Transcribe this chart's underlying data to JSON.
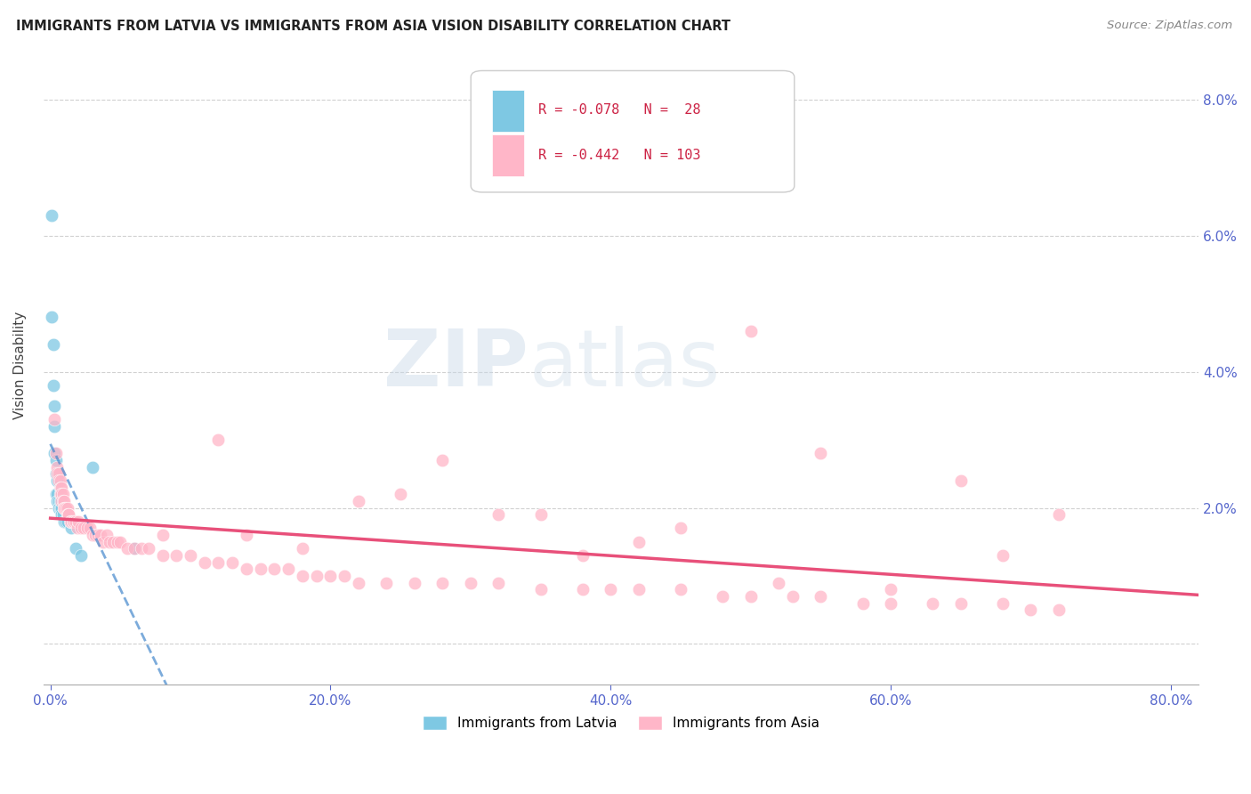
{
  "title": "IMMIGRANTS FROM LATVIA VS IMMIGRANTS FROM ASIA VISION DISABILITY CORRELATION CHART",
  "source": "Source: ZipAtlas.com",
  "ylabel": "Vision Disability",
  "xlim": [
    -0.005,
    0.82
  ],
  "ylim": [
    -0.006,
    0.088
  ],
  "yticks": [
    0.0,
    0.02,
    0.04,
    0.06,
    0.08
  ],
  "xticks": [
    0.0,
    0.2,
    0.4,
    0.6,
    0.8
  ],
  "xtick_labels": [
    "0.0%",
    "20.0%",
    "40.0%",
    "60.0%",
    "80.0%"
  ],
  "right_ytick_labels": [
    "",
    "2.0%",
    "4.0%",
    "6.0%",
    "8.0%"
  ],
  "latvia_R": -0.078,
  "latvia_N": 28,
  "asia_R": -0.442,
  "asia_N": 103,
  "latvia_color": "#7ec8e3",
  "asia_color": "#ffb6c8",
  "latvia_line_color": "#4488cc",
  "asia_line_color": "#e8507a",
  "background_color": "#ffffff",
  "title_color": "#222222",
  "source_color": "#888888",
  "tick_color": "#5566cc",
  "grid_color": "#cccccc",
  "watermark_color": "#dde8f0",
  "latvia_x": [
    0.001,
    0.001,
    0.002,
    0.002,
    0.003,
    0.003,
    0.003,
    0.004,
    0.004,
    0.004,
    0.005,
    0.005,
    0.005,
    0.006,
    0.006,
    0.007,
    0.007,
    0.008,
    0.008,
    0.009,
    0.01,
    0.011,
    0.012,
    0.015,
    0.018,
    0.022,
    0.03,
    0.06
  ],
  "latvia_y": [
    0.063,
    0.048,
    0.044,
    0.038,
    0.035,
    0.032,
    0.028,
    0.027,
    0.025,
    0.022,
    0.024,
    0.022,
    0.021,
    0.021,
    0.02,
    0.021,
    0.02,
    0.02,
    0.019,
    0.019,
    0.018,
    0.018,
    0.018,
    0.017,
    0.014,
    0.013,
    0.026,
    0.014
  ],
  "asia_x": [
    0.003,
    0.004,
    0.005,
    0.005,
    0.006,
    0.006,
    0.007,
    0.007,
    0.007,
    0.008,
    0.008,
    0.008,
    0.009,
    0.009,
    0.01,
    0.01,
    0.01,
    0.011,
    0.011,
    0.012,
    0.012,
    0.013,
    0.013,
    0.014,
    0.015,
    0.016,
    0.017,
    0.018,
    0.019,
    0.02,
    0.022,
    0.024,
    0.026,
    0.028,
    0.03,
    0.032,
    0.034,
    0.036,
    0.038,
    0.04,
    0.042,
    0.045,
    0.048,
    0.05,
    0.055,
    0.06,
    0.065,
    0.07,
    0.08,
    0.09,
    0.1,
    0.11,
    0.12,
    0.13,
    0.14,
    0.15,
    0.16,
    0.17,
    0.18,
    0.19,
    0.2,
    0.21,
    0.22,
    0.24,
    0.26,
    0.28,
    0.3,
    0.32,
    0.35,
    0.38,
    0.4,
    0.42,
    0.45,
    0.48,
    0.5,
    0.53,
    0.55,
    0.58,
    0.6,
    0.63,
    0.65,
    0.68,
    0.7,
    0.72,
    0.5,
    0.55,
    0.28,
    0.35,
    0.12,
    0.25,
    0.08,
    0.65,
    0.72,
    0.18,
    0.32,
    0.45,
    0.6,
    0.14,
    0.22,
    0.38,
    0.52,
    0.68,
    0.42
  ],
  "asia_y": [
    0.033,
    0.028,
    0.026,
    0.025,
    0.025,
    0.024,
    0.024,
    0.023,
    0.022,
    0.023,
    0.022,
    0.021,
    0.022,
    0.021,
    0.021,
    0.02,
    0.02,
    0.02,
    0.02,
    0.02,
    0.019,
    0.019,
    0.019,
    0.018,
    0.018,
    0.018,
    0.018,
    0.018,
    0.017,
    0.018,
    0.017,
    0.017,
    0.017,
    0.017,
    0.016,
    0.016,
    0.016,
    0.016,
    0.015,
    0.016,
    0.015,
    0.015,
    0.015,
    0.015,
    0.014,
    0.014,
    0.014,
    0.014,
    0.013,
    0.013,
    0.013,
    0.012,
    0.012,
    0.012,
    0.011,
    0.011,
    0.011,
    0.011,
    0.01,
    0.01,
    0.01,
    0.01,
    0.009,
    0.009,
    0.009,
    0.009,
    0.009,
    0.009,
    0.008,
    0.008,
    0.008,
    0.008,
    0.008,
    0.007,
    0.007,
    0.007,
    0.007,
    0.006,
    0.006,
    0.006,
    0.006,
    0.006,
    0.005,
    0.005,
    0.046,
    0.028,
    0.027,
    0.019,
    0.03,
    0.022,
    0.016,
    0.024,
    0.019,
    0.014,
    0.019,
    0.017,
    0.008,
    0.016,
    0.021,
    0.013,
    0.009,
    0.013,
    0.015
  ]
}
